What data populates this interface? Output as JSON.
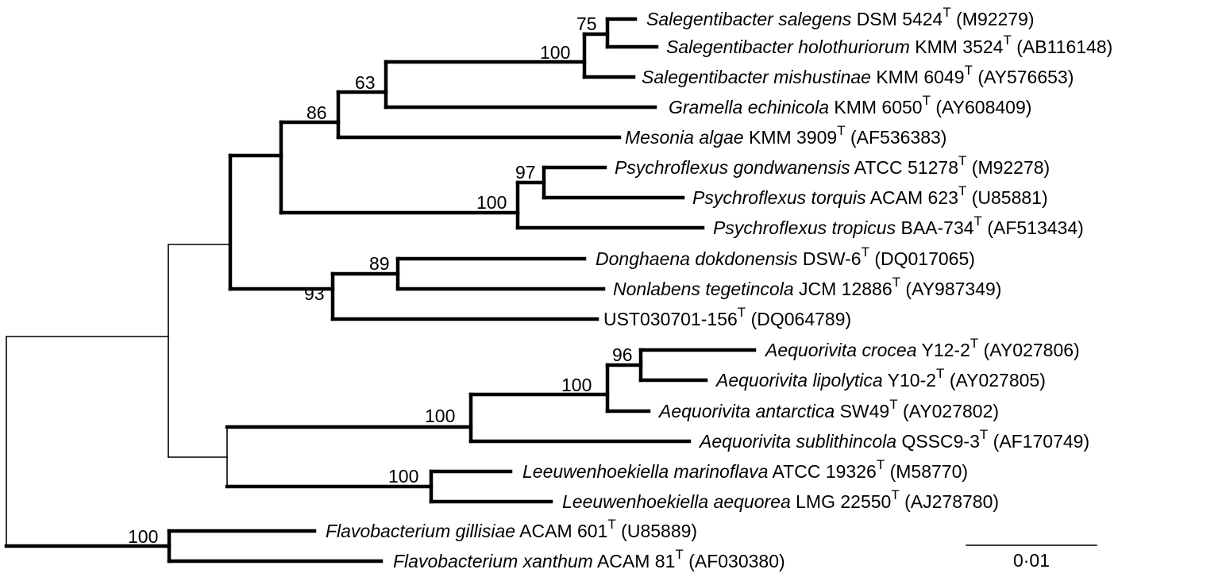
{
  "taxa": [
    {
      "id": "t1",
      "genus": "Salegentibacter salegens",
      "strain": "DSM 5424",
      "type_mark": "T",
      "accession": "(M92279)"
    },
    {
      "id": "t2",
      "genus": "Salegentibacter holothuriorum",
      "strain": "KMM 3524",
      "type_mark": "T",
      "accession": "(AB116148)"
    },
    {
      "id": "t3",
      "genus": "Salegentibacter mishustinae",
      "strain": "KMM 6049",
      "type_mark": "T",
      "accession": "(AY576653)"
    },
    {
      "id": "t4",
      "genus": "Gramella echinicola",
      "strain": "KMM 6050",
      "type_mark": "T",
      "accession": "(AY608409)"
    },
    {
      "id": "t5",
      "genus": "Mesonia algae",
      "strain": "KMM 3909",
      "type_mark": "T",
      "accession": "(AF536383)"
    },
    {
      "id": "t6",
      "genus": "Psychroflexus gondwanensis",
      "strain": "ATCC 51278",
      "type_mark": "T",
      "accession": "(M92278)"
    },
    {
      "id": "t7",
      "genus": "Psychroflexus torquis",
      "strain": "ACAM 623",
      "type_mark": "T",
      "accession": "(U85881)"
    },
    {
      "id": "t8",
      "genus": "Psychroflexus tropicus",
      "strain": "BAA-734",
      "type_mark": "T",
      "accession": "(AF513434)"
    },
    {
      "id": "t9",
      "genus": "Donghaena dokdonensis",
      "strain": "DSW-6",
      "type_mark": "T",
      "accession": "(DQ017065)"
    },
    {
      "id": "t10",
      "genus": "Nonlabens tegetincola",
      "strain": "JCM 12886",
      "type_mark": "T",
      "accession": "(AY987349)"
    },
    {
      "id": "t11",
      "genus": "",
      "strain": "UST030701-156",
      "type_mark": "T",
      "accession": "(DQ064789)"
    },
    {
      "id": "t12",
      "genus": "Aequorivita crocea",
      "strain": "Y12-2",
      "type_mark": "T",
      "accession": "(AY027806)"
    },
    {
      "id": "t13",
      "genus": "Aequorivita lipolytica",
      "strain": "Y10-2",
      "type_mark": "T",
      "accession": "(AY027805)"
    },
    {
      "id": "t14",
      "genus": "Aequorivita antarctica",
      "strain": "SW49",
      "type_mark": "T",
      "accession": "(AY027802)"
    },
    {
      "id": "t15",
      "genus": "Aequorivita sublithincola",
      "strain": "QSSC9-3",
      "type_mark": "T",
      "accession": "(AF170749)"
    },
    {
      "id": "t16",
      "genus": "Leeuwenhoekiella marinoflava",
      "strain": "ATCC 19326",
      "type_mark": "T",
      "accession": "(M58770)"
    },
    {
      "id": "t17",
      "genus": "Leeuwenhoekiella aequorea",
      "strain": "LMG 22550",
      "type_mark": "T",
      "accession": "(AJ278780)"
    },
    {
      "id": "t18",
      "genus": "Flavobacterium gillisiae",
      "strain": "ACAM 601",
      "type_mark": "T",
      "accession": "(U85889)"
    },
    {
      "id": "t19",
      "genus": "Flavobacterium xanthum",
      "strain": "ACAM 81",
      "type_mark": "T",
      "accession": "(AF030380)"
    }
  ],
  "bootstrap": [
    "75",
    "100",
    "63",
    "86",
    "97",
    "100",
    "89",
    "93",
    "96",
    "100",
    "100",
    "100",
    "100"
  ],
  "scale_bar": {
    "label": "0·01"
  }
}
